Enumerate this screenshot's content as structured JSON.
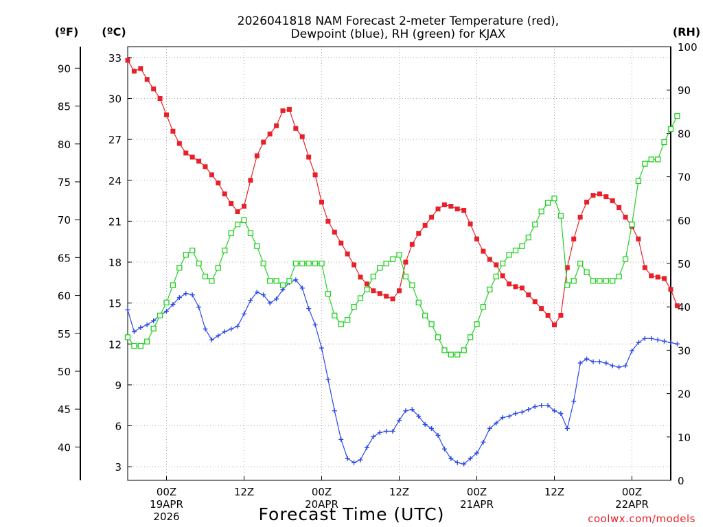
{
  "chart_data": {
    "type": "line",
    "title_line1": "2026041818 NAM Forecast 2-meter Temperature (red),",
    "title_line2": "Dewpoint (blue), RH (green) for KJAX",
    "xlabel": "Forecast Time (UTC)",
    "credit": "coolwx.com/models",
    "unit_f": "(ºF)",
    "unit_c": "(ºC)",
    "unit_rh": "(RH)",
    "x_hours_range": [
      0,
      84
    ],
    "x_step_hours": 1,
    "x_ticks": [
      {
        "hour": 6,
        "line1": "00Z",
        "line2": "19APR",
        "line3": "2026"
      },
      {
        "hour": 18,
        "line1": "12Z",
        "line2": "",
        "line3": ""
      },
      {
        "hour": 30,
        "line1": "00Z",
        "line2": "20APR",
        "line3": ""
      },
      {
        "hour": 42,
        "line1": "12Z",
        "line2": "",
        "line3": ""
      },
      {
        "hour": 54,
        "line1": "00Z",
        "line2": "21APR",
        "line3": ""
      },
      {
        "hour": 66,
        "line1": "12Z",
        "line2": "",
        "line3": ""
      },
      {
        "hour": 78,
        "line1": "00Z",
        "line2": "22APR",
        "line3": ""
      }
    ],
    "ylim_c": [
      2,
      33.8
    ],
    "ylim_rh": [
      0,
      100
    ],
    "celsius_ticks": [
      "3",
      "6",
      "9",
      "12",
      "15",
      "18",
      "21",
      "24",
      "27",
      "30",
      "33"
    ],
    "fahrenheit_ticks": [
      "40",
      "45",
      "50",
      "55",
      "60",
      "65",
      "70",
      "75",
      "80",
      "85",
      "90"
    ],
    "rh_ticks": [
      "0",
      "10",
      "20",
      "30",
      "40",
      "50",
      "60",
      "70",
      "80",
      "90",
      "100"
    ],
    "series": [
      {
        "name": "Temperature",
        "units": "C",
        "color": "#e8202a",
        "marker": "filled-square",
        "values": [
          32.8,
          32.0,
          32.2,
          31.4,
          30.7,
          30.0,
          28.8,
          27.6,
          26.7,
          26.0,
          25.7,
          25.4,
          25.0,
          24.4,
          23.8,
          23.0,
          22.3,
          21.7,
          22.1,
          24.0,
          25.8,
          26.8,
          27.4,
          28.0,
          29.1,
          29.2,
          27.8,
          27.2,
          25.7,
          24.4,
          22.4,
          21.0,
          20.2,
          19.4,
          18.6,
          17.8,
          16.9,
          16.4,
          15.9,
          15.7,
          15.5,
          15.3,
          15.9,
          18.0,
          19.3,
          20.1,
          20.7,
          21.3,
          21.9,
          22.2,
          22.1,
          21.9,
          21.8,
          20.8,
          19.7,
          18.8,
          18.2,
          17.8,
          17.0,
          16.4,
          16.2,
          16.1,
          15.6,
          15.1,
          14.6,
          14.1,
          13.4,
          14.1,
          17.6,
          19.7,
          21.3,
          22.4,
          22.9,
          23.0,
          22.8,
          22.5,
          22.0,
          21.3,
          20.6,
          19.7,
          17.6,
          17.0,
          16.9,
          16.8,
          16.0,
          14.8
        ]
      },
      {
        "name": "Dewpoint",
        "units": "C",
        "color": "#2a48e8",
        "marker": "plus",
        "values": [
          14.5,
          12.9,
          13.2,
          13.4,
          13.7,
          14.1,
          14.4,
          14.9,
          15.4,
          15.7,
          15.6,
          14.7,
          13.1,
          12.3,
          12.6,
          12.9,
          13.1,
          13.3,
          14.2,
          15.2,
          15.8,
          15.6,
          15.0,
          15.3,
          16.0,
          16.5,
          16.7,
          16.1,
          14.6,
          13.4,
          11.7,
          9.4,
          7.1,
          5.0,
          3.6,
          3.3,
          3.5,
          4.4,
          5.2,
          5.5,
          5.6,
          5.6,
          6.4,
          7.1,
          7.2,
          6.7,
          6.1,
          5.8,
          5.3,
          4.3,
          3.6,
          3.3,
          3.2,
          3.6,
          4.0,
          4.8,
          5.8,
          6.2,
          6.6,
          6.7,
          6.9,
          7.0,
          7.2,
          7.4,
          7.5,
          7.5,
          7.1,
          6.9,
          5.8,
          7.8,
          10.6,
          10.9,
          10.7,
          10.7,
          10.6,
          10.4,
          10.3,
          10.4,
          11.5,
          12.1,
          12.4,
          12.4,
          12.3,
          12.2,
          12.1,
          12.0
        ]
      },
      {
        "name": "RH",
        "units": "percent",
        "color": "#20d020",
        "marker": "open-square",
        "values": [
          33,
          31,
          31,
          32,
          35,
          38,
          41,
          45,
          49,
          52,
          53,
          50,
          47,
          46,
          49,
          53,
          57,
          59,
          60,
          57,
          54,
          50,
          46,
          46,
          45,
          46,
          50,
          50,
          50,
          50,
          50,
          43,
          38,
          36,
          37,
          40,
          42,
          44,
          47,
          49,
          50,
          51,
          52,
          47,
          45,
          41,
          38,
          36,
          33,
          30,
          29,
          29,
          30,
          33,
          36,
          40,
          44,
          47,
          50,
          52,
          53,
          54,
          56,
          59,
          62,
          64,
          65,
          61,
          45,
          46,
          50,
          48,
          46,
          46,
          46,
          46,
          47,
          51,
          59,
          69,
          73,
          74,
          74,
          78,
          81,
          84
        ]
      }
    ]
  }
}
